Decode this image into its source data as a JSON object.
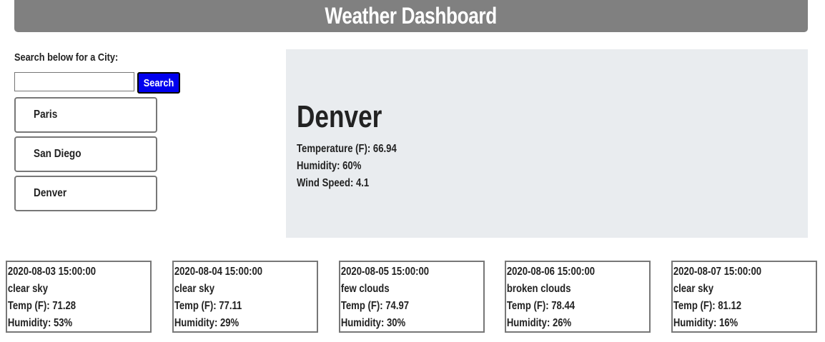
{
  "header": {
    "title": "Weather Dashboard"
  },
  "search": {
    "label": "Search below for a City:",
    "value": "",
    "placeholder": "",
    "button_label": "Search"
  },
  "history": [
    "Paris",
    "San Diego",
    "Denver"
  ],
  "current": {
    "city": "Denver",
    "temperature": "Temperature (F): 66.94",
    "humidity": "Humidity: 60%",
    "wind": "Wind Speed: 4.1"
  },
  "forecast": [
    {
      "date": "2020-08-03 15:00:00",
      "desc": "clear sky",
      "temp": "Temp (F): 71.28",
      "humidity": "Humidity: 53%"
    },
    {
      "date": "2020-08-04 15:00:00",
      "desc": "clear sky",
      "temp": "Temp (F): 77.11",
      "humidity": "Humidity: 29%"
    },
    {
      "date": "2020-08-05 15:00:00",
      "desc": "few clouds",
      "temp": "Temp (F): 74.97",
      "humidity": "Humidity: 30%"
    },
    {
      "date": "2020-08-06 15:00:00",
      "desc": "broken clouds",
      "temp": "Temp (F): 78.44",
      "humidity": "Humidity: 26%"
    },
    {
      "date": "2020-08-07 15:00:00",
      "desc": "clear sky",
      "temp": "Temp (F): 81.12",
      "humidity": "Humidity: 16%"
    }
  ],
  "colors": {
    "header_bg": "#808080",
    "search_button_bg": "#0000ee",
    "current_panel_bg": "#e9ecef"
  }
}
